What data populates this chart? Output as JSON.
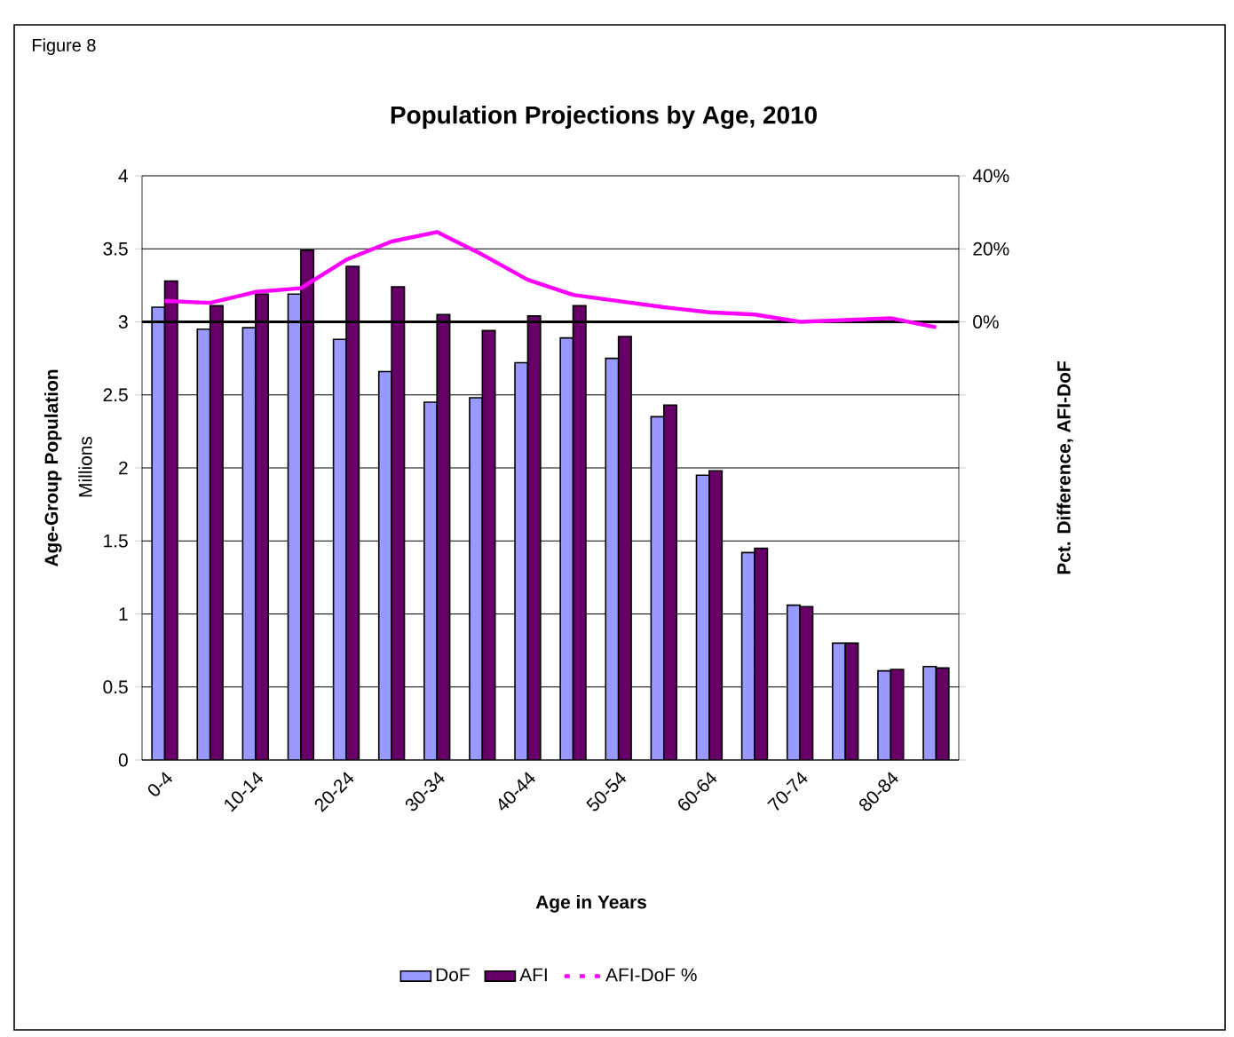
{
  "chart_data": {
    "type": "bar",
    "title": "Population Projections by Age, 2010",
    "xlabel": "Age in Years",
    "ylabel": "Age-Group Population",
    "y2label": "Pct. Difference, AFI-DoF",
    "annotations": [
      "Figure 8",
      "Millions"
    ],
    "categories": [
      "0-4",
      null,
      "10-14",
      null,
      "20-24",
      null,
      "30-34",
      null,
      "40-44",
      null,
      "50-54",
      null,
      "60-64",
      null,
      "70-74",
      null,
      "80-84",
      null
    ],
    "series": [
      {
        "name": "DoF",
        "color": "#9999ff",
        "values": [
          3.1,
          2.95,
          2.96,
          3.19,
          2.88,
          2.66,
          2.45,
          2.48,
          2.72,
          2.89,
          2.75,
          2.35,
          1.95,
          1.42,
          1.06,
          0.8,
          0.61,
          0.64
        ]
      },
      {
        "name": "AFI",
        "color": "#660066",
        "values": [
          3.28,
          3.11,
          3.19,
          3.49,
          3.38,
          3.24,
          3.05,
          2.94,
          3.04,
          3.11,
          2.9,
          2.43,
          1.98,
          1.45,
          1.05,
          0.8,
          0.62,
          0.63
        ]
      },
      {
        "name": "AFI-DoF %",
        "type": "line",
        "axis": "y2",
        "color": "#ff00ff",
        "values": [
          5.7,
          5.2,
          8.2,
          9.2,
          17,
          22,
          24.6,
          18.4,
          11.5,
          7.4,
          5.7,
          4,
          2.6,
          2,
          0,
          0.5,
          1,
          -1.5
        ]
      }
    ],
    "ylim": [
      0,
      4
    ],
    "yticks": [
      0,
      0.5,
      1,
      1.5,
      2,
      2.5,
      3,
      3.5,
      4
    ],
    "y2lim": [
      -120,
      40
    ],
    "y2ticks": [
      {
        "value": -120,
        "label": null
      },
      {
        "value": -100,
        "label": null
      },
      {
        "value": -80,
        "label": null
      },
      {
        "value": -60,
        "label": null
      },
      {
        "value": -40,
        "label": null
      },
      {
        "value": -20,
        "label": null
      },
      {
        "value": 0,
        "label": "0%"
      },
      {
        "value": 20,
        "label": "20%"
      },
      {
        "value": 40,
        "label": "40%"
      }
    ],
    "ref_lines": [
      {
        "axis": "y2",
        "value": 0,
        "color": "#000000"
      }
    ],
    "grid": "y",
    "legend": "bottom"
  }
}
